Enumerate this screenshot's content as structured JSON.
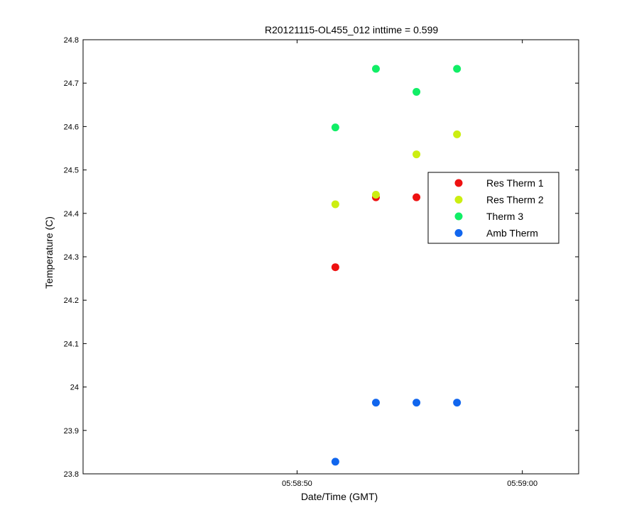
{
  "chart_data": {
    "type": "scatter",
    "title": "R20121115-OL455_012 inttime = 0.599",
    "xlabel": "Date/Time (GMT)",
    "ylabel": "Temperature (C)",
    "ylim": [
      23.8,
      24.8
    ],
    "xlim_seconds_of_day": [
      21520.5,
      21542.5
    ],
    "yticks": [
      23.8,
      23.9,
      24,
      24.1,
      24.2,
      24.3,
      24.4,
      24.5,
      24.6,
      24.7,
      24.8
    ],
    "ytick_labels": [
      "23.8",
      "23.9",
      "24",
      "24.1",
      "24.2",
      "24.3",
      "24.4",
      "24.5",
      "24.6",
      "24.7",
      "24.8"
    ],
    "xticks_seconds_of_day": [
      21530,
      21540
    ],
    "xtick_labels": [
      "05:58:50",
      "05:59:00"
    ],
    "grid": false,
    "legend_position": "right",
    "series": [
      {
        "name": "Res Therm 1",
        "color": "#ee1111",
        "x_seconds_of_day": [
          21531.7,
          21533.5,
          21535.3,
          21537.1
        ],
        "y": [
          24.276,
          24.437,
          24.437,
          24.437
        ]
      },
      {
        "name": "Res Therm 2",
        "color": "#ccee11",
        "x_seconds_of_day": [
          21531.7,
          21533.5,
          21535.3,
          21537.1
        ],
        "y": [
          24.421,
          24.443,
          24.536,
          24.582
        ]
      },
      {
        "name": "Therm 3",
        "color": "#11ee66",
        "x_seconds_of_day": [
          21531.7,
          21533.5,
          21535.3,
          21537.1
        ],
        "y": [
          24.598,
          24.733,
          24.68,
          24.733
        ]
      },
      {
        "name": "Amb Therm",
        "color": "#1166ee",
        "x_seconds_of_day": [
          21531.7,
          21533.5,
          21535.3,
          21537.1
        ],
        "y": [
          23.828,
          23.964,
          23.964,
          23.964
        ]
      }
    ]
  }
}
